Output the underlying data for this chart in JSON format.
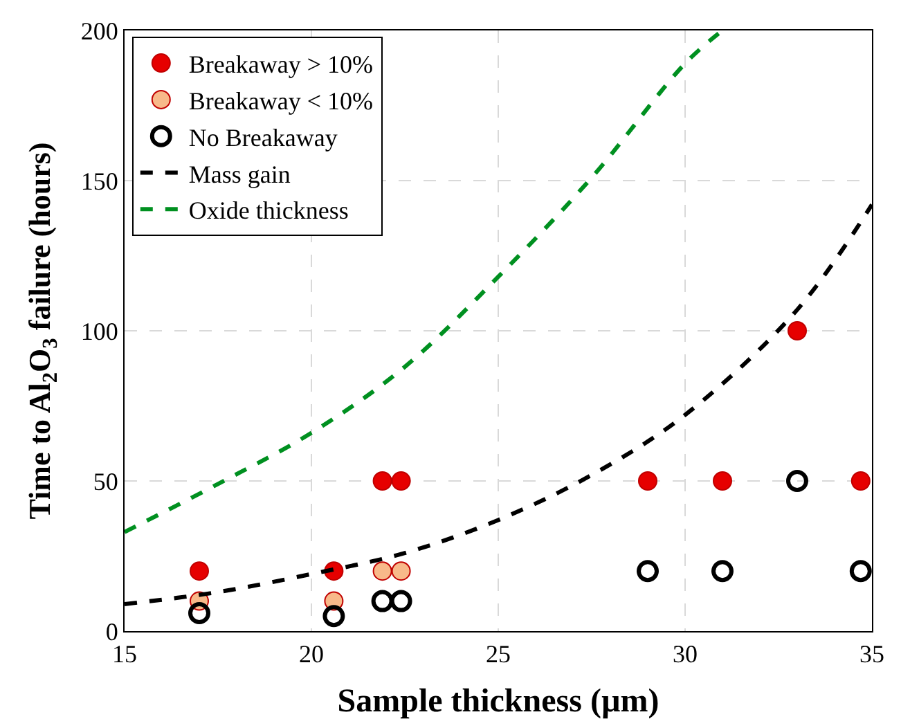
{
  "chart_data": {
    "type": "scatter",
    "xlabel": "Sample thickness (µm)",
    "ylabel": "Time to Al$_{2}$O$_{3}$ failure (hours)",
    "xlim": [
      15,
      35
    ],
    "xticks": [
      15,
      20,
      25,
      30,
      35
    ],
    "ylim": [
      0,
      200
    ],
    "yticks": [
      0,
      50,
      100,
      150,
      200
    ],
    "grid": true,
    "legend": "top left",
    "series": [
      {
        "name": "Breakaway > 10%",
        "marker": "circle",
        "color": "#e60000",
        "x": [
          17.0,
          20.6,
          21.9,
          22.4,
          29.0,
          31.0,
          33.0,
          34.7
        ],
        "values": [
          20,
          20,
          50,
          50,
          50,
          50,
          100,
          50
        ]
      },
      {
        "name": "Breakaway < 10%",
        "marker": "circle",
        "color": "#f8b98a",
        "x": [
          17.0,
          20.6,
          21.9,
          22.4
        ],
        "values": [
          10,
          10,
          20,
          20
        ]
      },
      {
        "name": "No Breakaway",
        "marker": "circle",
        "color": "#000000",
        "x": [
          17.0,
          20.6,
          21.9,
          22.4,
          29.0,
          31.0,
          33.0,
          34.7
        ],
        "values": [
          6,
          5,
          10,
          10,
          20,
          20,
          50,
          20
        ]
      },
      {
        "name": "Mass gain",
        "type": "line",
        "line_style": "dashed",
        "color": "#000000",
        "x": [
          15,
          17.5,
          20,
          22.5,
          25,
          27.5,
          30,
          33,
          35
        ],
        "values": [
          9,
          13,
          19,
          26,
          37,
          52,
          72,
          107,
          142
        ]
      },
      {
        "name": "Oxide thickness",
        "type": "line",
        "line_style": "dashed",
        "color": "#009020",
        "x": [
          15,
          17.5,
          20,
          22.5,
          25,
          27.5,
          30,
          31
        ],
        "values": [
          33,
          49,
          66,
          88,
          118,
          151,
          189,
          200
        ]
      }
    ]
  }
}
